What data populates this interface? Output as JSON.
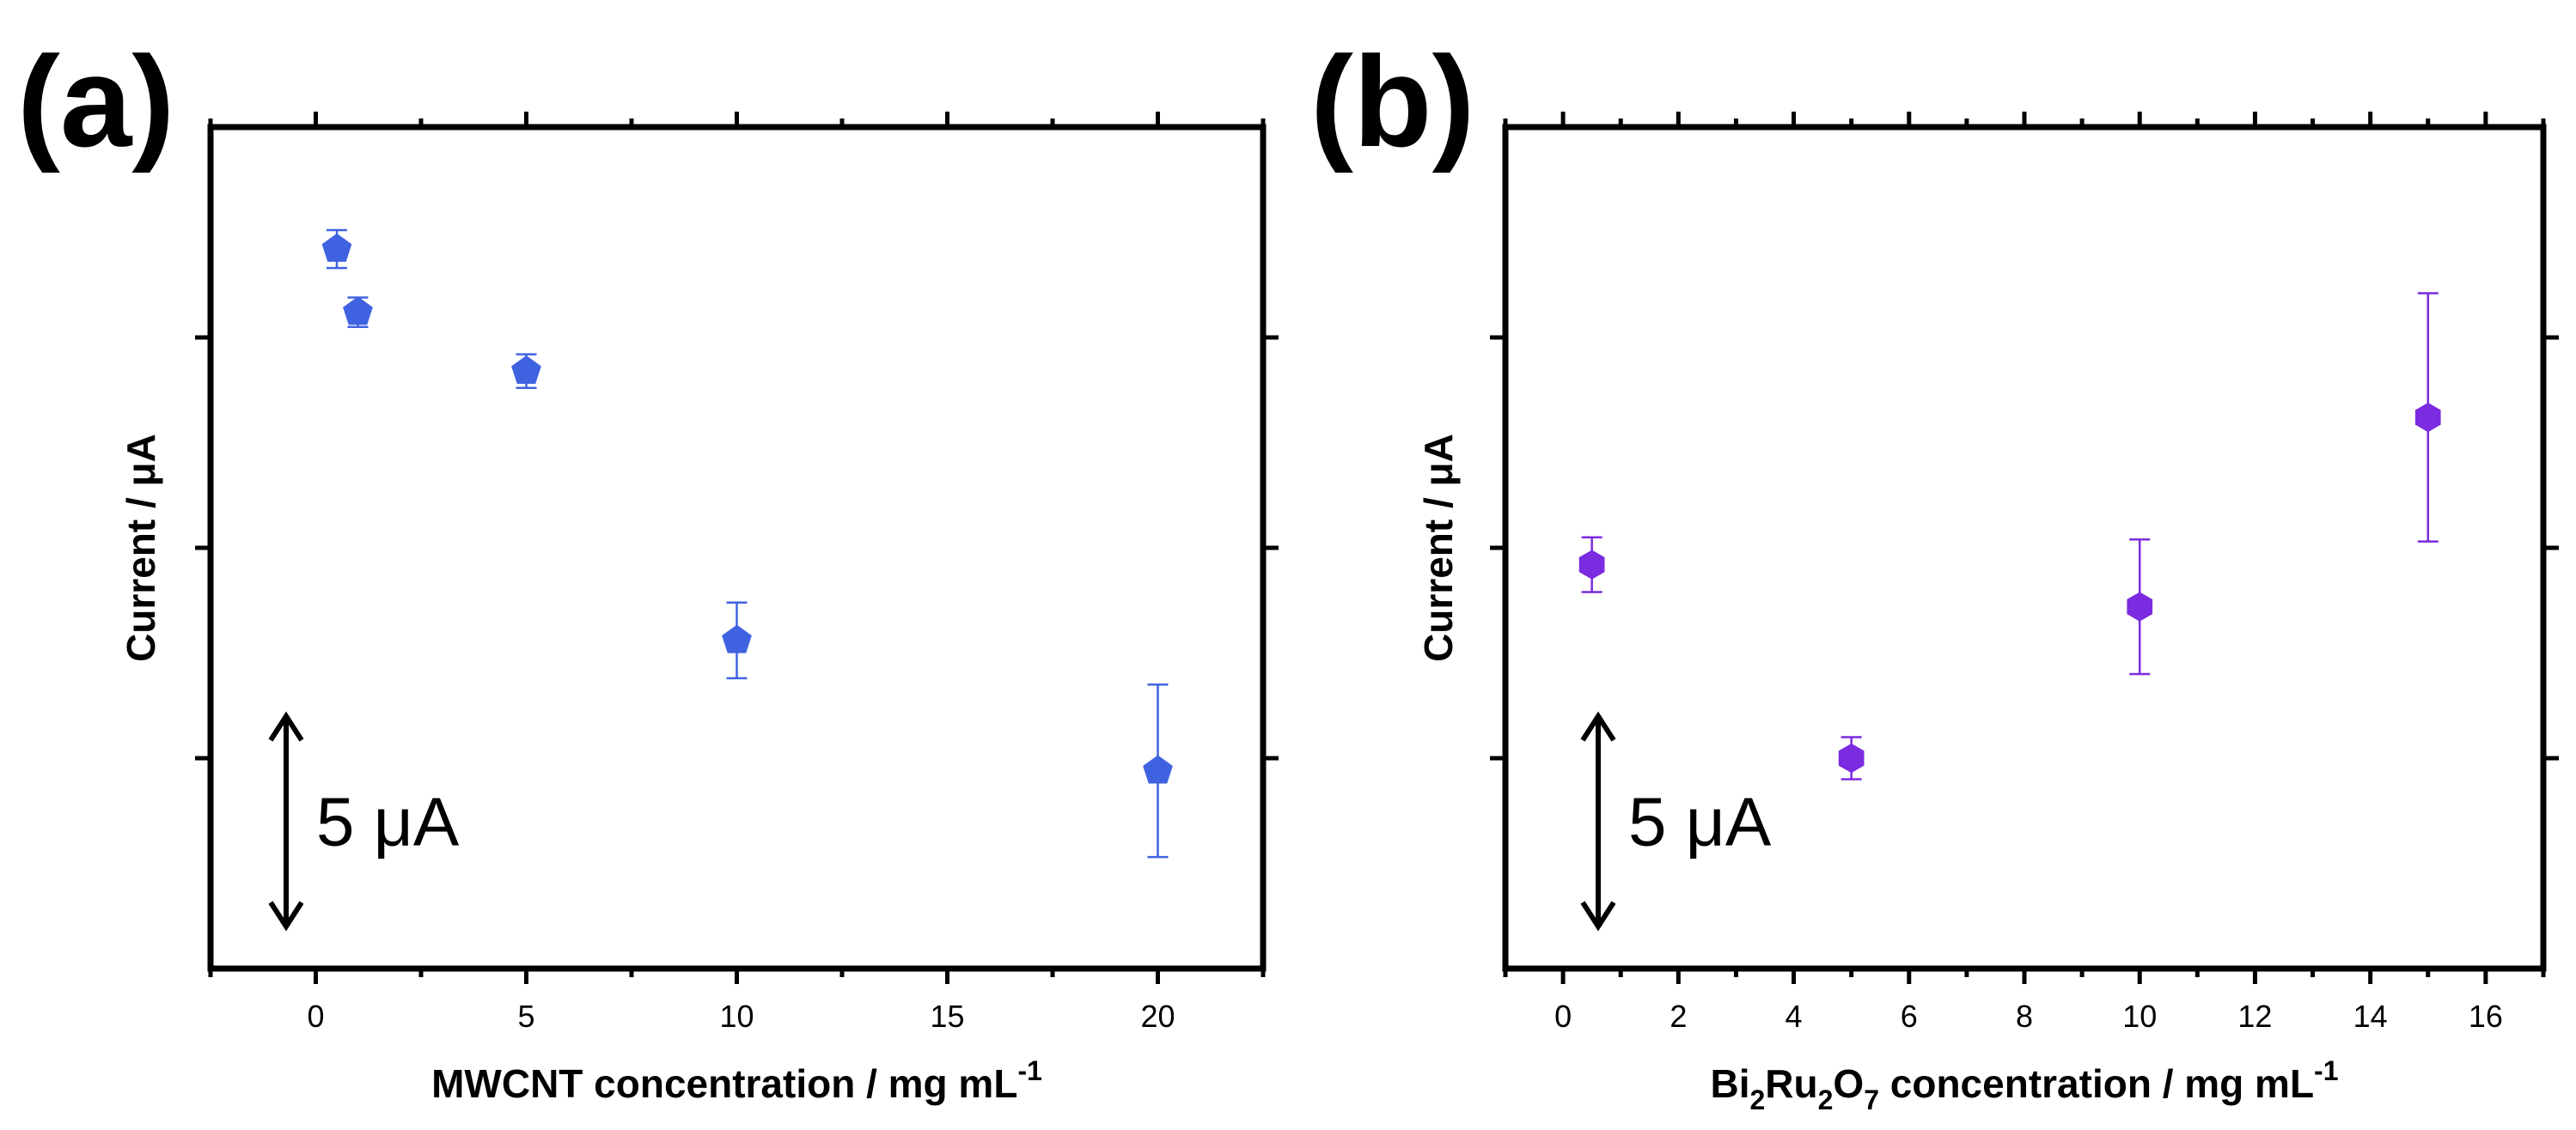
{
  "chart_data": [
    {
      "panel": "(a)",
      "type": "scatter",
      "marker": "pentagon",
      "color": "#3f63e0",
      "xlabel_parts": [
        {
          "text": "MWCNT concentration / mg mL",
          "style": "normal"
        },
        {
          "text": "-1",
          "style": "sup"
        }
      ],
      "ylabel": "Current / μA",
      "xlim": [
        -2.5,
        22.5
      ],
      "x_ticks": [
        0,
        5,
        10,
        15,
        20
      ],
      "x_minor": [
        -2.5,
        2.5,
        7.5,
        12.5,
        17.5,
        22.5
      ],
      "ylim": [
        0,
        20
      ],
      "y_ticks": [
        5,
        10,
        15
      ],
      "y_tick_labels_shown": false,
      "scale_bar": {
        "label": "5 μA",
        "from": 1,
        "to": 6
      },
      "points": [
        {
          "x": 0.5,
          "y": 17.1,
          "err": 0.45
        },
        {
          "x": 1,
          "y": 15.6,
          "err": 0.35
        },
        {
          "x": 5,
          "y": 14.2,
          "err": 0.4
        },
        {
          "x": 10,
          "y": 7.8,
          "err": 0.9
        },
        {
          "x": 20,
          "y": 4.7,
          "err": 2.05
        }
      ]
    },
    {
      "panel": "(b)",
      "type": "scatter",
      "marker": "hexagon",
      "color": "#7b2be0",
      "xlabel_parts": [
        {
          "text": "Bi",
          "style": "normal"
        },
        {
          "text": "2",
          "style": "sub"
        },
        {
          "text": "Ru",
          "style": "normal"
        },
        {
          "text": "2",
          "style": "sub"
        },
        {
          "text": "O",
          "style": "normal"
        },
        {
          "text": "7",
          "style": "sub"
        },
        {
          "text": " concentration / mg mL",
          "style": "normal"
        },
        {
          "text": "-1",
          "style": "sup"
        }
      ],
      "ylabel": "Current / μA",
      "xlim": [
        -1,
        17
      ],
      "x_ticks": [
        0,
        2,
        4,
        6,
        8,
        10,
        12,
        14,
        16
      ],
      "x_minor": [
        -1,
        1,
        3,
        5,
        7,
        9,
        11,
        13,
        15,
        17
      ],
      "ylim": [
        0,
        20
      ],
      "y_ticks": [
        5,
        10,
        15
      ],
      "y_tick_labels_shown": false,
      "scale_bar": {
        "label": "5 μA",
        "from": 1,
        "to": 6
      },
      "points": [
        {
          "x": 0.5,
          "y": 9.6,
          "err": 0.65
        },
        {
          "x": 5,
          "y": 5.0,
          "err": 0.5
        },
        {
          "x": 10,
          "y": 8.6,
          "err": 1.6
        },
        {
          "x": 15,
          "y": 13.1,
          "err": 2.95
        }
      ]
    }
  ]
}
